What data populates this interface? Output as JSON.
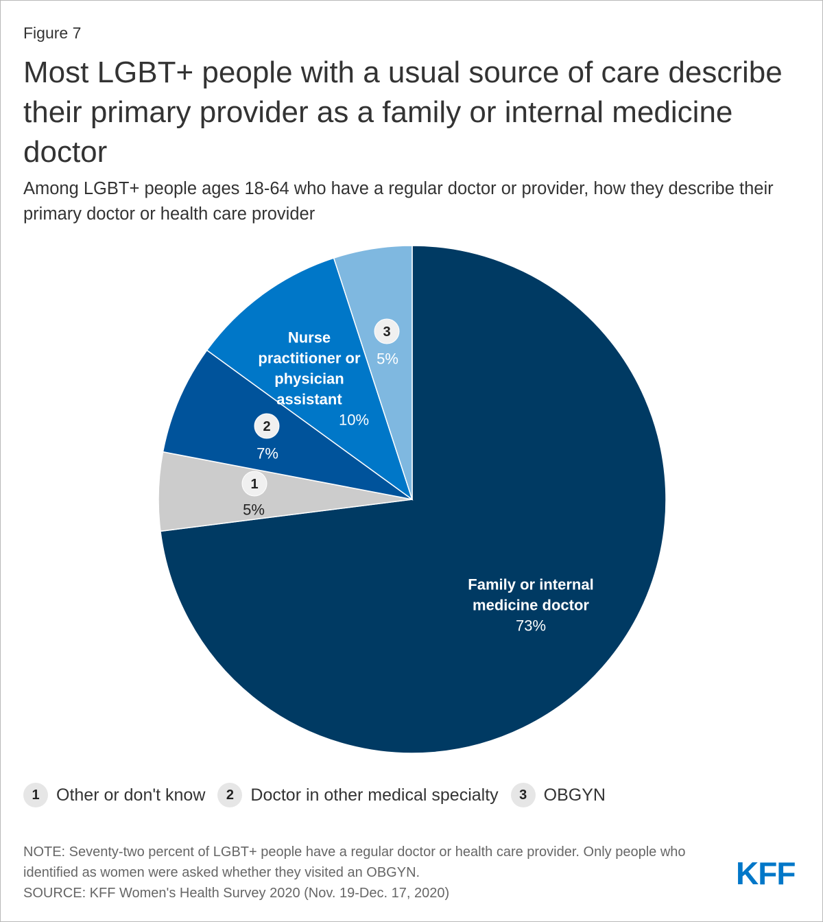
{
  "figure_label": "Figure 7",
  "title": "Most LGBT+ people with a usual source of care describe their primary provider as a family or internal medicine doctor",
  "subtitle": "Among LGBT+ people ages 18-64 who have a regular doctor or provider, how they describe their primary doctor or health care provider",
  "chart_data": {
    "type": "pie",
    "title": "Most LGBT+ people with a usual source of care describe their primary provider as a family or internal medicine doctor",
    "start": "12 o'clock",
    "direction": "clockwise",
    "slices": [
      {
        "name": "Family or internal medicine doctor",
        "value": 73,
        "value_label": "73%",
        "color": "#003a63",
        "label_lines": [
          "Family or internal",
          "medicine doctor"
        ]
      },
      {
        "name": "Other or don't know",
        "value": 5,
        "value_label": "5%",
        "color": "#cccccc",
        "marker": "1"
      },
      {
        "name": "Doctor in other medical specialty",
        "value": 7,
        "value_label": "7%",
        "color": "#00539b",
        "marker": "2"
      },
      {
        "name": "Nurse practitioner or physician assistant",
        "value": 10,
        "value_label": "10%",
        "color": "#0077c8",
        "label_lines": [
          "Nurse",
          "practitioner or",
          "physician",
          "assistant"
        ]
      },
      {
        "name": "OBGYN",
        "value": 5,
        "value_label": "5%",
        "color": "#7fb8e0",
        "marker": "3"
      }
    ]
  },
  "legend": [
    {
      "num": "1",
      "label": "Other or don't know"
    },
    {
      "num": "2",
      "label": "Doctor in other medical specialty"
    },
    {
      "num": "3",
      "label": "OBGYN"
    }
  ],
  "note": "NOTE: Seventy-two percent of LGBT+ people have a regular doctor or health care provider. Only people who identified as women were asked whether they visited an OBGYN.",
  "source": "SOURCE: KFF Women's Health Survey 2020 (Nov. 19-Dec. 17, 2020)",
  "logo_text": "KFF"
}
